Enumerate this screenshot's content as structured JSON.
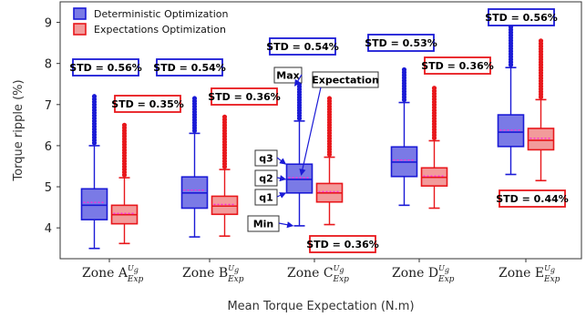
{
  "chart_data": {
    "type": "box",
    "xlabel": "Mean Torque Expectation (N.m)",
    "ylabel": "Torque ripple (%)",
    "ylim": [
      3.25,
      9.5
    ],
    "yticks": [
      "4",
      "5",
      "6",
      "7",
      "8",
      "9"
    ],
    "legend_placement": "top-left",
    "grid": false,
    "categories": [
      {
        "base": "Zone A",
        "sup": "U",
        "supsub": "g",
        "sub": "Exp"
      },
      {
        "base": "Zone B",
        "sup": "U",
        "supsub": "g",
        "sub": "Exp"
      },
      {
        "base": "Zone C",
        "sup": "U",
        "supsub": "g",
        "sub": "Exp"
      },
      {
        "base": "Zone D",
        "sup": "U",
        "supsub": "g",
        "sub": "Exp"
      },
      {
        "base": "Zone E",
        "sup": "U",
        "supsub": "g",
        "sub": "Exp"
      }
    ],
    "series": [
      {
        "name": "Deterministic Optimization",
        "color": "#1a1ad6",
        "boxes": [
          {
            "min": 3.5,
            "q1": 4.2,
            "median": 4.55,
            "mean": 4.62,
            "q3": 4.95,
            "max": 6.0,
            "outlier_max": 7.2,
            "std": "STD = 0.56%"
          },
          {
            "min": 3.78,
            "q1": 4.48,
            "median": 4.85,
            "mean": 4.92,
            "q3": 5.24,
            "max": 6.3,
            "outlier_max": 7.15,
            "std": "STD = 0.54%"
          },
          {
            "min": 4.05,
            "q1": 4.85,
            "median": 5.18,
            "mean": 5.22,
            "q3": 5.55,
            "max": 6.6,
            "outlier_max": 7.5,
            "std": "STD = 0.54%"
          },
          {
            "min": 4.55,
            "q1": 5.25,
            "median": 5.6,
            "mean": 5.65,
            "q3": 5.97,
            "max": 7.05,
            "outlier_max": 7.85,
            "std": "STD = 0.53%"
          },
          {
            "min": 5.3,
            "q1": 5.98,
            "median": 6.33,
            "mean": 6.38,
            "q3": 6.75,
            "max": 7.9,
            "outlier_max": 9.15,
            "std": "STD = 0.56%"
          }
        ]
      },
      {
        "name": "Expectations Optimization",
        "color": "#e8171b",
        "boxes": [
          {
            "min": 3.62,
            "q1": 4.1,
            "median": 4.32,
            "mean": 4.35,
            "q3": 4.55,
            "max": 5.22,
            "outlier_max": 6.5,
            "std": "STD = 0.35%"
          },
          {
            "min": 3.8,
            "q1": 4.33,
            "median": 4.53,
            "mean": 4.57,
            "q3": 4.77,
            "max": 5.42,
            "outlier_max": 6.7,
            "std": "STD = 0.36%"
          },
          {
            "min": 4.08,
            "q1": 4.63,
            "median": 4.85,
            "mean": 4.88,
            "q3": 5.08,
            "max": 5.72,
            "outlier_max": 7.15,
            "std": "STD = 0.36%"
          },
          {
            "min": 4.48,
            "q1": 5.02,
            "median": 5.23,
            "mean": 5.26,
            "q3": 5.46,
            "max": 6.12,
            "outlier_max": 7.4,
            "std": "STD = 0.36%"
          },
          {
            "min": 5.15,
            "q1": 5.9,
            "median": 6.13,
            "mean": 6.18,
            "q3": 6.42,
            "max": 7.12,
            "outlier_max": 8.55,
            "std": "STD = 0.44%"
          }
        ]
      }
    ],
    "annotations": {
      "max": "Max",
      "expectation": "Expectation",
      "q3": "q3",
      "q2": "q2",
      "q1": "q1",
      "min": "Min"
    }
  }
}
